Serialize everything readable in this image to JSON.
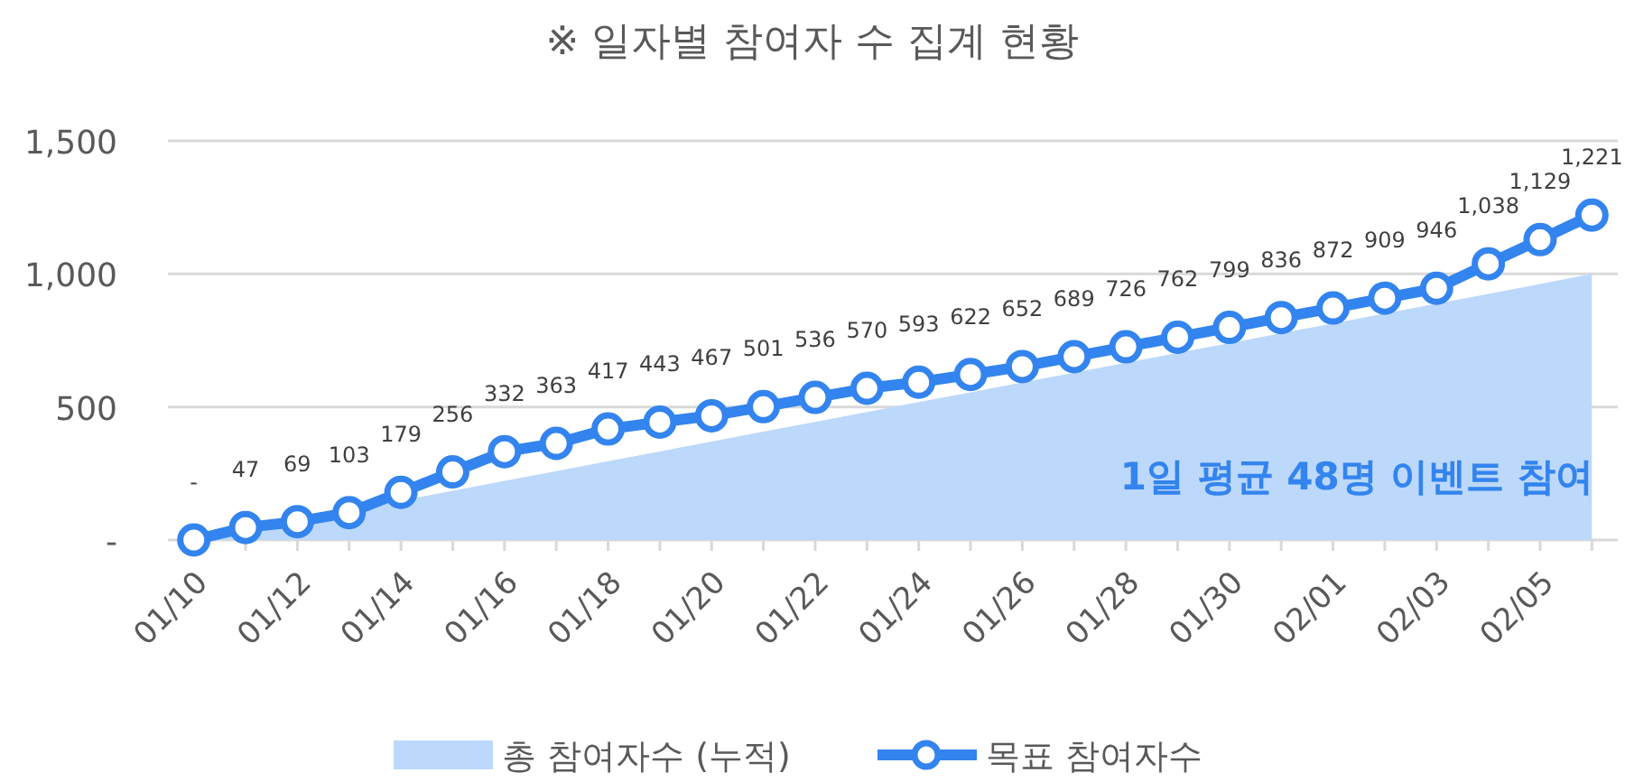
{
  "chart_data": {
    "type": "line",
    "title": "※ 일자별 참여자 수 집계 현황",
    "categories": [
      "01/10",
      null,
      "01/12",
      null,
      "01/14",
      null,
      "01/16",
      null,
      "01/18",
      null,
      "01/20",
      null,
      "01/22",
      null,
      "01/24",
      null,
      "01/26",
      null,
      "01/28",
      null,
      "01/30",
      null,
      "02/01",
      null,
      "02/03",
      null,
      "02/05",
      null
    ],
    "series": [
      {
        "name": "총 참여자수 (누적)",
        "type": "area",
        "color": "#bcd8fb",
        "values": [
          0,
          37,
          74,
          111,
          148,
          185,
          222,
          259,
          296,
          333,
          370,
          407,
          444,
          481,
          518,
          555,
          592,
          629,
          666,
          703,
          740,
          777,
          814,
          851,
          888,
          925,
          962,
          1000
        ]
      },
      {
        "name": "목표 참여자수",
        "color": "#3384ee",
        "marker": "circle",
        "values": [
          0,
          47,
          69,
          103,
          179,
          256,
          332,
          363,
          417,
          443,
          467,
          501,
          536,
          570,
          593,
          622,
          652,
          689,
          726,
          762,
          799,
          836,
          872,
          909,
          946,
          1038,
          1129,
          1221
        ],
        "value_labels": [
          "-",
          "47",
          "69",
          "103",
          "179",
          "256",
          "332",
          "363",
          "417",
          "443",
          "467",
          "501",
          "536",
          "570",
          "593",
          "622",
          "652",
          "689",
          "726",
          "762",
          "799",
          "836",
          "872",
          "909",
          "946",
          "1,038",
          "1,129",
          "1,221"
        ]
      }
    ],
    "ylim": [
      0,
      1500
    ],
    "yticks": [
      {
        "value": 0,
        "label": "-"
      },
      500,
      {
        "value": 1000,
        "label": "1,000"
      },
      {
        "value": 1500,
        "label": "1,500"
      }
    ],
    "grid": "y",
    "legend": "bottom",
    "annotations": [
      "1일 평균 48명 이벤트 참여"
    ]
  }
}
